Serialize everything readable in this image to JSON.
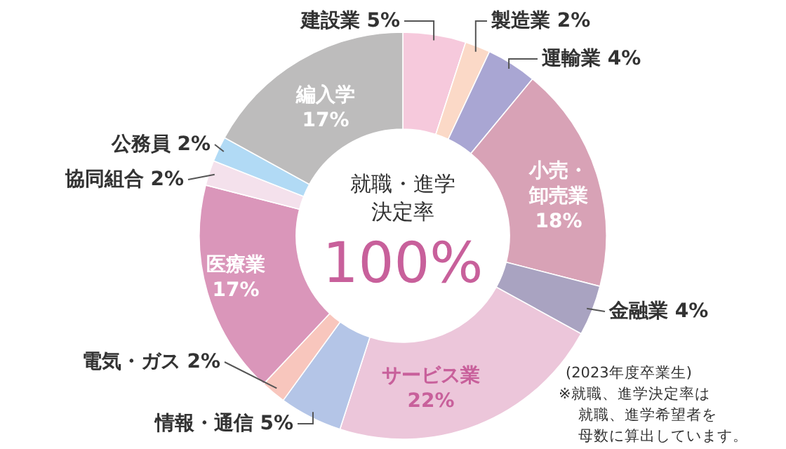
{
  "chart_data": {
    "type": "donut",
    "title": "就職・進学決定率",
    "categories": [
      "建設業",
      "製造業",
      "運輸業",
      "小売・卸売業",
      "金融業",
      "サービス業",
      "情報・通信",
      "電気・ガス",
      "医療業",
      "協同組合",
      "公務員",
      "編入学"
    ],
    "values": [
      5,
      2,
      4,
      18,
      4,
      22,
      5,
      2,
      17,
      2,
      2,
      17
    ],
    "colors": [
      "#f6c9dc",
      "#fbd9c7",
      "#a9a6d3",
      "#d8a2b6",
      "#a9a3c1",
      "#ecc6da",
      "#b4c5e7",
      "#f8c6bd",
      "#da96ba",
      "#f4e1ec",
      "#b1daf5",
      "#bdbcbc"
    ],
    "value_labels": [
      "5%",
      "2%",
      "4%",
      "18%",
      "4%",
      "22%",
      "5%",
      "2%",
      "17%",
      "2%",
      "2%",
      "17%"
    ],
    "annotations": [
      "100%",
      "(2023年度卒業生)",
      "※就職、進学決定率は",
      "就職、進学希望者を",
      "母数に算出しています。"
    ]
  }
}
